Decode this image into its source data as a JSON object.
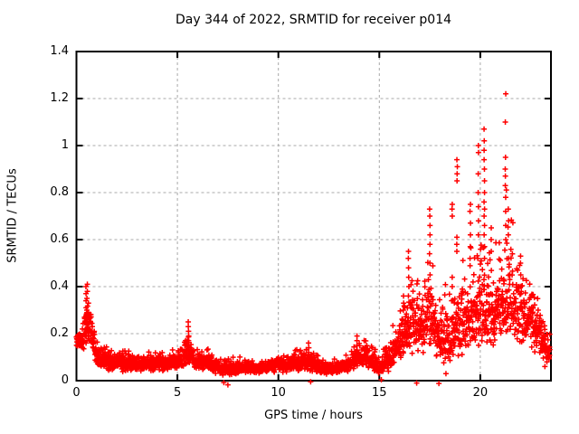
{
  "chart_data": {
    "type": "scatter",
    "title": "Day 344 of 2022, SRMTID for receiver p014",
    "xlabel": "GPS time / hours",
    "ylabel": "SRMTID / TECUs",
    "series_name": "SRMTID",
    "xlim": [
      0,
      23.5
    ],
    "ylim": [
      0,
      1.4
    ],
    "xticks": [
      0,
      5,
      10,
      15,
      20
    ],
    "xtick_labels": [
      "0",
      "5",
      "10",
      "15",
      "20"
    ],
    "yticks": [
      0,
      0.2,
      0.4,
      0.6,
      0.8,
      1,
      1.2,
      1.4
    ],
    "ytick_labels": [
      "0",
      "0.2",
      "0.4",
      "0.6",
      "0.8",
      "1",
      "1.2",
      "1.4"
    ],
    "grid": true,
    "grid_style": "dashed",
    "legend": false,
    "marker": "plus",
    "colors": {
      "points": "#ff0000",
      "grid": "#a8a8a8",
      "axis": "#000000",
      "background": "#ffffff"
    },
    "sampling": {
      "t_start": 0,
      "t_end": 23.45,
      "dt_hours": 0.0083333,
      "seed": 1234
    },
    "envelope": [
      [
        0.0,
        0.165,
        0.14
      ],
      [
        0.35,
        0.18,
        0.2
      ],
      [
        0.5,
        0.27,
        0.22
      ],
      [
        0.7,
        0.22,
        0.25
      ],
      [
        1.0,
        0.115,
        0.28
      ],
      [
        1.5,
        0.08,
        0.3
      ],
      [
        2.5,
        0.072,
        0.3
      ],
      [
        3.5,
        0.07,
        0.3
      ],
      [
        4.5,
        0.075,
        0.3
      ],
      [
        5.2,
        0.085,
        0.3
      ],
      [
        5.55,
        0.13,
        0.32
      ],
      [
        5.9,
        0.08,
        0.3
      ],
      [
        6.5,
        0.08,
        0.32
      ],
      [
        7.1,
        0.05,
        0.35
      ],
      [
        7.6,
        0.048,
        0.38
      ],
      [
        8.3,
        0.055,
        0.32
      ],
      [
        9.3,
        0.052,
        0.3
      ],
      [
        10.3,
        0.07,
        0.33
      ],
      [
        10.9,
        0.075,
        0.33
      ],
      [
        11.5,
        0.082,
        0.35
      ],
      [
        12.1,
        0.056,
        0.3
      ],
      [
        12.9,
        0.052,
        0.3
      ],
      [
        13.5,
        0.07,
        0.3
      ],
      [
        14.0,
        0.105,
        0.3
      ],
      [
        14.4,
        0.1,
        0.33
      ],
      [
        15.0,
        0.055,
        0.42
      ],
      [
        15.6,
        0.11,
        0.35
      ],
      [
        16.1,
        0.18,
        0.35
      ],
      [
        16.6,
        0.24,
        0.35
      ],
      [
        17.1,
        0.22,
        0.38
      ],
      [
        17.5,
        0.27,
        0.4
      ],
      [
        18.0,
        0.19,
        0.42
      ],
      [
        18.45,
        0.17,
        0.45
      ],
      [
        18.9,
        0.23,
        0.42
      ],
      [
        19.4,
        0.27,
        0.4
      ],
      [
        19.9,
        0.3,
        0.42
      ],
      [
        20.25,
        0.34,
        0.42
      ],
      [
        20.7,
        0.29,
        0.36
      ],
      [
        21.1,
        0.33,
        0.4
      ],
      [
        21.35,
        0.38,
        0.42
      ],
      [
        21.8,
        0.3,
        0.35
      ],
      [
        22.3,
        0.27,
        0.3
      ],
      [
        22.8,
        0.22,
        0.3
      ],
      [
        23.15,
        0.16,
        0.32
      ],
      [
        23.45,
        0.115,
        0.32
      ]
    ],
    "spikes": [
      {
        "t": 0.48,
        "ys": [
          0.16,
          0.19,
          0.22,
          0.25,
          0.28,
          0.31,
          0.34,
          0.37,
          0.4
        ]
      },
      {
        "t": 0.53,
        "ys": [
          0.17,
          0.21,
          0.26,
          0.3,
          0.35,
          0.38,
          0.41
        ]
      },
      {
        "t": 0.58,
        "ys": [
          0.18,
          0.24,
          0.29,
          0.33
        ]
      },
      {
        "t": 5.55,
        "ys": [
          0.15,
          0.17,
          0.19,
          0.21,
          0.23,
          0.25
        ]
      },
      {
        "t": 11.5,
        "ys": [
          0.12,
          0.14,
          0.16
        ]
      },
      {
        "t": 13.9,
        "ys": [
          0.15,
          0.17,
          0.19
        ]
      },
      {
        "t": 16.2,
        "ys": [
          0.3,
          0.33,
          0.36
        ]
      },
      {
        "t": 16.45,
        "ys": [
          0.36,
          0.4,
          0.44,
          0.48,
          0.52,
          0.55
        ]
      },
      {
        "t": 17.5,
        "ys": [
          0.45,
          0.5,
          0.54,
          0.58,
          0.62,
          0.66,
          0.7,
          0.73
        ]
      },
      {
        "t": 18.6,
        "ys": [
          0.4,
          0.44,
          0.7,
          0.73,
          0.75
        ]
      },
      {
        "t": 18.85,
        "ys": [
          0.55,
          0.58,
          0.61,
          0.85,
          0.88,
          0.91,
          0.94
        ]
      },
      {
        "t": 19.5,
        "ys": [
          0.52,
          0.57,
          0.62,
          0.67,
          0.72,
          0.75
        ]
      },
      {
        "t": 19.9,
        "ys": [
          0.62,
          0.68,
          0.74,
          0.8,
          0.88,
          0.97,
          1.0
        ]
      },
      {
        "t": 20.2,
        "ys": [
          0.52,
          0.57,
          0.62,
          0.66,
          0.7,
          0.73,
          0.76,
          0.8,
          0.85,
          0.9,
          0.94,
          0.98,
          1.02,
          1.07
        ]
      },
      {
        "t": 20.55,
        "ys": [
          0.55,
          0.6,
          0.65
        ]
      },
      {
        "t": 21.25,
        "ys": [
          0.6,
          0.66,
          0.72,
          0.78,
          0.83,
          0.87,
          0.9,
          0.95,
          1.1,
          1.22
        ]
      },
      {
        "t": 21.4,
        "ys": [
          0.62,
          0.68,
          0.73
        ]
      },
      {
        "t": 22.0,
        "ys": [
          0.45,
          0.5,
          0.53
        ]
      }
    ],
    "low_outliers": [
      [
        7.3,
        -0.008
      ],
      [
        7.5,
        -0.018
      ],
      [
        11.6,
        -0.005
      ],
      [
        15.1,
        0.004
      ],
      [
        16.85,
        -0.01
      ],
      [
        17.95,
        -0.012
      ],
      [
        18.3,
        0.03
      ],
      [
        23.2,
        0.06
      ],
      [
        23.3,
        0.08
      ]
    ]
  }
}
